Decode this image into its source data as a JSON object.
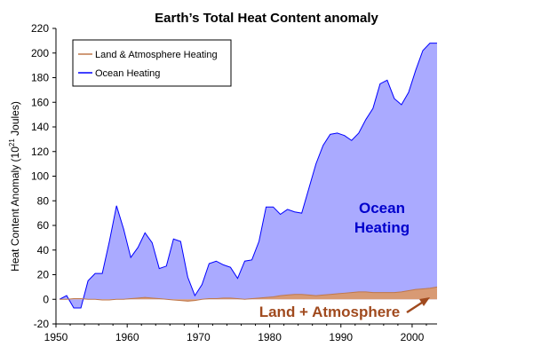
{
  "chart_data": {
    "type": "area",
    "title": "Earth’s Total Heat Content anomaly",
    "ylabel": "Heat Content Anomaly (10",
    "ylabel_sup": "21",
    "ylabel_tail": " Joules)",
    "xlabel": "",
    "xlim": [
      1950,
      2003.5
    ],
    "ylim": [
      -20,
      220
    ],
    "x_ticks": [
      1950,
      1960,
      1970,
      1980,
      1990,
      2000
    ],
    "y_ticks": [
      -20,
      0,
      20,
      40,
      60,
      80,
      100,
      120,
      140,
      160,
      180,
      200,
      220
    ],
    "x": [
      1950.5,
      1951.5,
      1952.5,
      1953.5,
      1954.5,
      1955.5,
      1956.5,
      1957.5,
      1958.5,
      1959.5,
      1960.5,
      1961.5,
      1962.5,
      1963.5,
      1964.5,
      1965.5,
      1966.5,
      1967.5,
      1968.5,
      1969.5,
      1970.5,
      1971.5,
      1972.5,
      1973.5,
      1974.5,
      1975.5,
      1976.5,
      1977.5,
      1978.5,
      1979.5,
      1980.5,
      1981.5,
      1982.5,
      1983.5,
      1984.5,
      1985.5,
      1986.5,
      1987.5,
      1988.5,
      1989.5,
      1990.5,
      1991.5,
      1992.5,
      1993.5,
      1994.5,
      1995.5,
      1996.5,
      1997.5,
      1998.5,
      1999.5,
      2000.5,
      2001.5,
      2002.5,
      2003.5
    ],
    "series": [
      {
        "name": "Land & Atmosphere Heating",
        "color": "#c0784a",
        "fill": "#d89a74",
        "values": [
          0,
          0,
          0.5,
          0.5,
          0,
          0,
          -0.5,
          -0.5,
          0,
          0,
          0.5,
          1,
          1.5,
          1,
          0.5,
          0,
          -0.5,
          -1,
          -1.5,
          -1,
          0,
          0.5,
          0.5,
          1,
          1,
          0.5,
          0,
          0.5,
          1,
          1.5,
          2,
          3,
          3.5,
          4,
          4,
          3.5,
          3,
          3.5,
          4,
          4.5,
          5,
          5.5,
          6,
          6,
          5.5,
          5.5,
          5.5,
          5.5,
          6,
          7,
          8,
          8.5,
          9,
          10
        ]
      },
      {
        "name": "Ocean Heating",
        "color": "#0000ff",
        "fill": "#aaaaff",
        "values": [
          0,
          3,
          -7,
          -7,
          15,
          21,
          21,
          47,
          76,
          57,
          34,
          42,
          54,
          46,
          25,
          27,
          49,
          47,
          18,
          3,
          12,
          29,
          31,
          28,
          26,
          17,
          31,
          32,
          47,
          75,
          75,
          69,
          73,
          71,
          70,
          90,
          110,
          125,
          134,
          135,
          133,
          129,
          135,
          146,
          155,
          175,
          178,
          163,
          158,
          168,
          186,
          202,
          208,
          208
        ]
      }
    ],
    "legend_placement": "top-left",
    "annotations": {
      "ocean_line1": "Ocean",
      "ocean_line2": "Heating",
      "land": "Land + Atmosphere",
      "ocean_color": "#0000cc",
      "land_color": "#a04a1e"
    },
    "grid": false
  }
}
